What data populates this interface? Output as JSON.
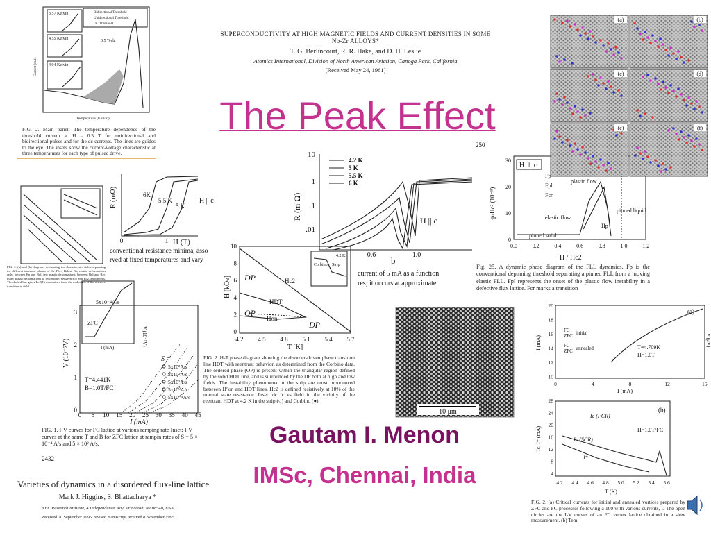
{
  "title": "The Peak Effect",
  "author": "Gautam I. Menon",
  "affiliation": "IMSc, Chennai, India",
  "paper_1961": {
    "title": "SUPERCONDUCTIVITY AT HIGH MAGNETIC FIELDS AND CURRENT DENSITIES IN SOME Nb-Zr ALLOYS*",
    "authors": "T. G. Berlincourt, R. R. Hake, and D. H. Leslie",
    "institution": "Atomics International, Division of North American Aviation, Canoga Park, California",
    "received": "(Received May 24, 1961)"
  },
  "paper_1995": {
    "title": "Varieties of dynamics in a disordered flux-line lattice",
    "authors": "Mark J. Higgins, S. Bhattacharya *",
    "institution": "NEC Research Institute, 4 Independence Way, Princeton, NJ 08540, USA",
    "received": "Received 20 September 1995; revised manuscript received 8 November 1995"
  },
  "fig_threshold": {
    "insets": [
      "3.57 Kelvin",
      "4.55 Kelvin",
      "4.94 Kelvin"
    ],
    "legend": [
      "Bidirectional Threshold",
      "Unidirectional Threshold",
      "DC Threshold"
    ],
    "field": "0.5 Tesla",
    "ylabel": "Current (mA)",
    "xlabel": "Temperature (Kelvin)",
    "caption": "FIG. 2. Main panel: The temperature dependence of the threshold current at H = 0.5 T for unidirectional and bidirectional pulses and for the dc currents. The lines are guides to the eye. The insets show the current-voltage characteristic at three temperatures for each type of pulsed drive."
  },
  "fig_phases_left": {
    "caption": "FIG. 2. (a) and (b) diagrams delineating the characteristic fields separating the different transport phases of the FLL. Below Bp, elastic deformations only; between Bp and Bpl, few plastic deformations; between Bpl and Bcr, many plastic deformations to recombine; between Bcr and Bc2, amorphous. The dashed line gives Bc2(T) as obtained from the midpoints of the resistive transition in field."
  },
  "fig_resistance_small": {
    "labels": [
      "6K",
      "5.5 K",
      "5 K",
      "H || c"
    ],
    "ylabel": "R (mΩ)",
    "xlabel": "H (T)",
    "xticks": [
      "0",
      "1"
    ],
    "caption_lines": [
      "conventional resistance minima, asso",
      "rved at fixed temperatures and vary"
    ]
  },
  "fig_resistance_log": {
    "legend": [
      "4.2 K",
      "5 K",
      "5.5 K",
      "6 K"
    ],
    "yticks": [
      "10",
      "1",
      ".1",
      ".01"
    ],
    "ylabel": "R (m Ω)",
    "field": "H || c",
    "xticks": [
      "0.6",
      "1.0"
    ],
    "xlabel": "b",
    "caption_lines": [
      "current of 5 mA as a function",
      "res; it occurs at approximate"
    ]
  },
  "fig_dynamic": {
    "page": "250",
    "field": "H ⊥ c",
    "legend": [
      "Fp",
      "Fpl",
      "Fcr"
    ],
    "regions": [
      "plastic flow",
      "elastic flow",
      "pinned solid",
      "pinned liquid"
    ],
    "marker": "Hp",
    "yticks": [
      "0",
      "10",
      "20",
      "30"
    ],
    "ylabel": "Fp/Hc² (10⁻⁹)",
    "xticks": [
      "0.0",
      "0.2",
      "0.4",
      "0.6",
      "0.8",
      "1.0",
      "1.2"
    ],
    "xlabel": "H / Hc2",
    "caption": "Fig. 25. A dynamic phase diagram of the FLL dynamics. Fp is the conventional depinning threshold separating a pinned FLL from a moving elastic FLL. Fpl represents the onset of the plastic flow instability in a defective flux lattice. Fcr marks a transition"
  },
  "sim_panels": [
    "(a)",
    "(b)",
    "(c)",
    "(d)",
    "(e)",
    "(f)"
  ],
  "fig_ht": {
    "regions": [
      "DP",
      "OP",
      "DP"
    ],
    "lines": [
      "Hc2",
      "HDT",
      "Hon"
    ],
    "inset": [
      "Corbino",
      "Strip",
      "4.2 K"
    ],
    "yticks": [
      "10",
      "8",
      "6",
      "4",
      "2",
      "0"
    ],
    "ylabel": "H [kOe]",
    "xticks": [
      "4.2",
      "4.5",
      "4.8",
      "5.1",
      "5.4",
      "5.7"
    ],
    "xlabel": "T [K]",
    "caption": "FIG. 2. H-T phase diagram showing the disorder-driven phase transition line HDT with reentrant behavior, as determined from the Corbino data. The ordered phase (OP) is present within the triangular region defined by the solid HDT line, and is surrounded by the DP both at high and low fields. The instability phenomena in the strip are most pronounced between H°on and HDT lines. Hc2 is defined resistively at 10% of the normal state resistance. Inset: dc Ic vs field in the vicinity of the reentrant HDT at 4.2 K in the strip (○) and Corbino (●)."
  },
  "fig_iv": {
    "inset": [
      "5x10⁻⁴A/s",
      "ZFC",
      "V (10⁻⁵V)",
      "I (mA)"
    ],
    "legend_title": "S =",
    "legend": [
      "5x10²A/s",
      "2x10²A/s",
      "5x10¹A/s",
      "5x10⁰A/s",
      "5x10⁻⁴A/s"
    ],
    "params": [
      "T=4.441K",
      "B=1.0T/FC"
    ],
    "yticks": [
      "3",
      "2",
      "1",
      "0"
    ],
    "ylabel": "V (10⁻⁵V)",
    "xticks": [
      "0",
      "5",
      "10",
      "15",
      "20",
      "25",
      "30",
      "35",
      "40",
      "45"
    ],
    "xlabel": "I (mA)",
    "caption": "FIG. 1. I-V curves for FC lattice at various ramping rate Inset: I-V curves at the same T and B for ZFC lattice at rampin rates of S = 5 × 10⁻⁴ A/s and 5 × 10² A/s.",
    "page": "2432"
  },
  "fig_micro": {
    "scale": "10 μm"
  },
  "fig_critical": {
    "panel_a": {
      "tag": "(a)",
      "legend": [
        "FC",
        "ZFC",
        "initial",
        "FC",
        "ZFC",
        "annealed"
      ],
      "params": [
        "T=4.709K",
        "H=1.0T"
      ],
      "yticks": [
        "20",
        "18",
        "16",
        "14",
        "12",
        "10"
      ],
      "ylabel": "I (mA)",
      "xticks": [
        "0",
        "4",
        "8",
        "12",
        "16"
      ],
      "xlabel": "I (mA)",
      "y2label": "V (μV)"
    },
    "panel_b": {
      "tag": "(b)",
      "labels": [
        "Ic (FCR)",
        "Ic (SCR)",
        "I*",
        "H=1.0T/FC"
      ],
      "yticks": [
        "28",
        "24",
        "20",
        "16",
        "12",
        "8",
        "4"
      ],
      "ylabel": "Ic, I* (mA)",
      "xticks": [
        "4.2",
        "4.4",
        "4.6",
        "4.8",
        "5.0",
        "5.2",
        "5.4",
        "5.6"
      ],
      "xlabel": "T (K)"
    },
    "caption": "FIG. 2. (a) Critical currents for initial and annealed vortices prepared by ZFC and FC processes following a 100 with various currents, I. The open circles are the I-V curves of an FC vortex lattice obtained in a slow measurement. (b) Tem-"
  }
}
